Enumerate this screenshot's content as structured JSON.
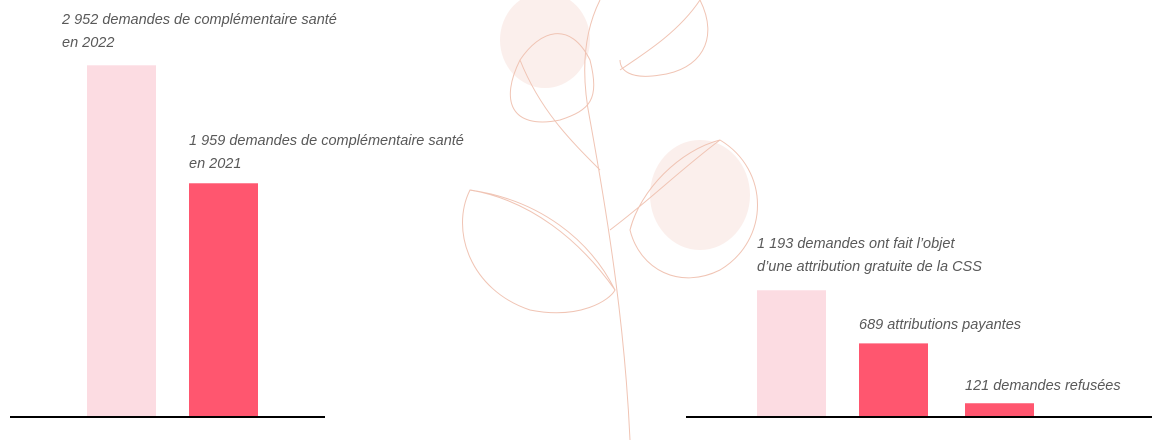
{
  "chart_data": [
    {
      "type": "bar",
      "values": [
        2952,
        1959
      ],
      "value_labels": [
        [
          "2 952 demandes de complémentaire santé",
          "en 2022"
        ],
        [
          "1 959 demandes de complémentaire santé",
          "en 2021"
        ]
      ],
      "colors": [
        "#fcdce2",
        "#ff566f"
      ]
    },
    {
      "type": "bar",
      "values": [
        1193,
        689,
        121
      ],
      "value_labels": [
        [
          "1 193 demandes ont fait l’objet",
          "d’une attribution gratuite de la CSS"
        ],
        [
          "689 attributions payantes"
        ],
        [
          "121 demandes refusées"
        ]
      ],
      "colors": [
        "#fcdce2",
        "#ff566f",
        "#ff566f"
      ]
    }
  ]
}
